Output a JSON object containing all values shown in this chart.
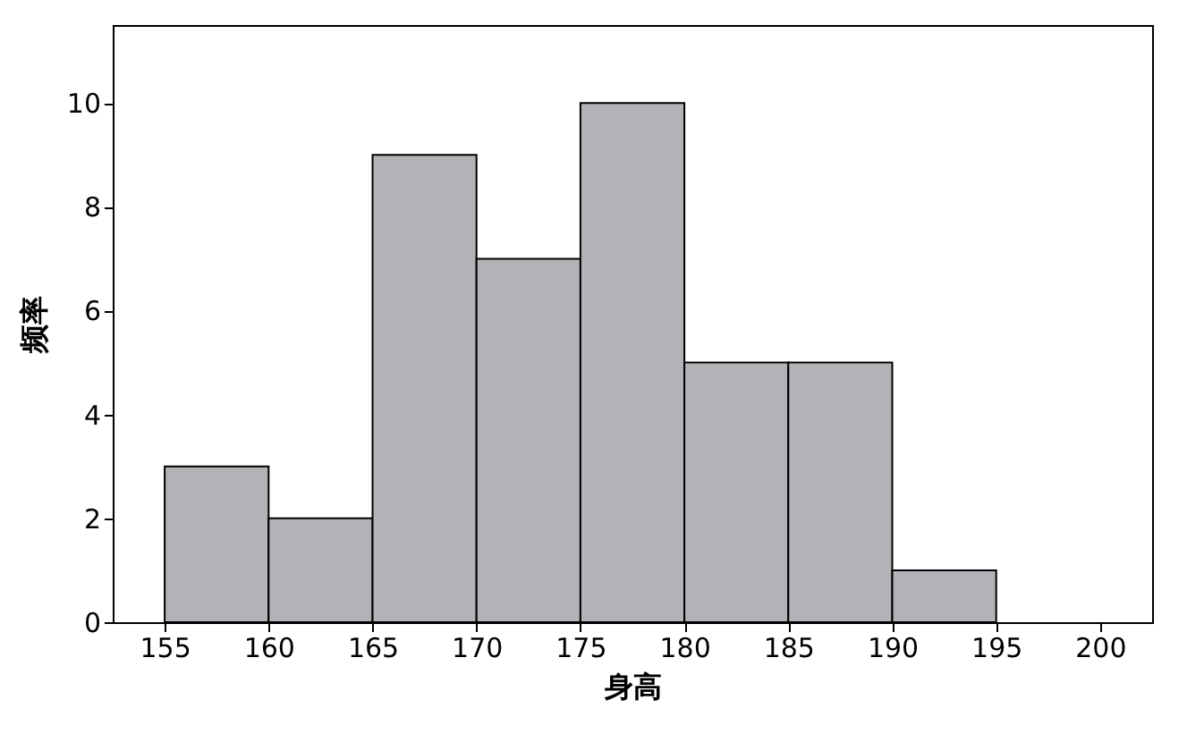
{
  "chart_data": {
    "type": "histogram",
    "xlabel": "身高",
    "ylabel": "频率",
    "bins": [
      155,
      160,
      165,
      170,
      175,
      180,
      185,
      190,
      195
    ],
    "values": [
      3,
      2,
      9,
      7,
      10,
      5,
      5,
      1
    ],
    "color": "#b2b3b7",
    "xlim": [
      152.5,
      202.5
    ],
    "xticks": [
      155,
      160,
      165,
      170,
      175,
      180,
      185,
      190,
      195,
      200
    ],
    "ylim": [
      0,
      11.5
    ],
    "yticks": [
      0,
      2,
      4,
      6,
      8,
      10
    ],
    "grid": false
  }
}
